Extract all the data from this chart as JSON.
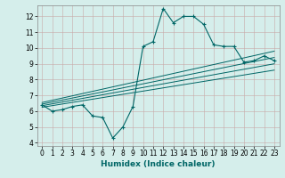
{
  "title": "",
  "xlabel": "Humidex (Indice chaleur)",
  "ylabel": "",
  "bg_color": "#d5eeeb",
  "grid_color": "#b8d8d4",
  "line_color": "#006666",
  "xlim": [
    -0.5,
    23.5
  ],
  "ylim": [
    3.8,
    12.7
  ],
  "xticks": [
    0,
    1,
    2,
    3,
    4,
    5,
    6,
    7,
    8,
    9,
    10,
    11,
    12,
    13,
    14,
    15,
    16,
    17,
    18,
    19,
    20,
    21,
    22,
    23
  ],
  "yticks": [
    4,
    5,
    6,
    7,
    8,
    9,
    10,
    11,
    12
  ],
  "curve_x": [
    0,
    1,
    2,
    3,
    4,
    5,
    6,
    7,
    8,
    9,
    10,
    11,
    12,
    13,
    14,
    15,
    16,
    17,
    18,
    19,
    20,
    21,
    22,
    23
  ],
  "curve_y": [
    6.4,
    6.0,
    6.1,
    6.3,
    6.4,
    5.7,
    5.6,
    4.3,
    5.0,
    6.3,
    10.1,
    10.4,
    12.5,
    11.6,
    12.0,
    12.0,
    11.5,
    10.2,
    10.1,
    10.1,
    9.1,
    9.2,
    9.5,
    9.2
  ],
  "lines": [
    {
      "x": [
        0,
        23
      ],
      "y": [
        6.55,
        9.8
      ]
    },
    {
      "x": [
        0,
        23
      ],
      "y": [
        6.45,
        9.4
      ]
    },
    {
      "x": [
        0,
        23
      ],
      "y": [
        6.35,
        9.0
      ]
    },
    {
      "x": [
        0,
        23
      ],
      "y": [
        6.25,
        8.6
      ]
    }
  ],
  "xlabel_fontsize": 6.5,
  "tick_fontsize": 5.5
}
